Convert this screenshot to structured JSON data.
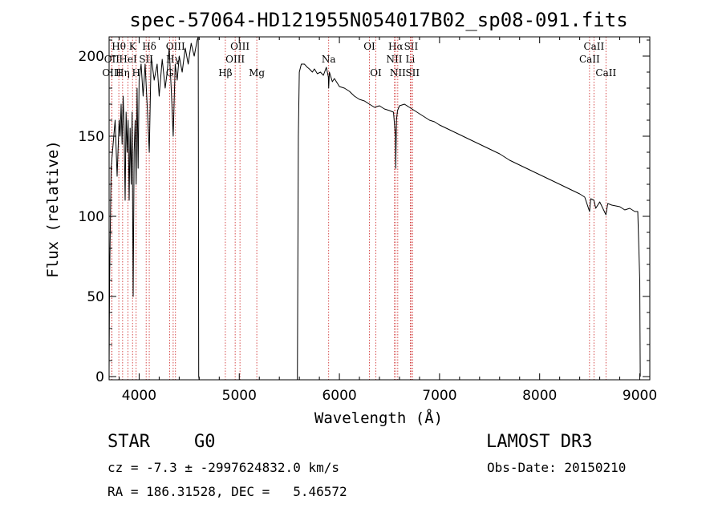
{
  "chart_data": {
    "type": "line",
    "title": "spec-57064-HD121955N054017B02_sp08-091.fits",
    "xlabel": "Wavelength (Å)",
    "ylabel": "Flux (relative)",
    "xlim": [
      3700,
      9100
    ],
    "ylim": [
      -2,
      212
    ],
    "xticks": [
      4000,
      5000,
      6000,
      7000,
      8000,
      9000
    ],
    "yticks": [
      0,
      50,
      100,
      150,
      200
    ],
    "series": [
      {
        "name": "flux",
        "x": [
          3700,
          3705,
          3720,
          3740,
          3760,
          3780,
          3800,
          3810,
          3820,
          3830,
          3840,
          3850,
          3860,
          3870,
          3880,
          3890,
          3900,
          3910,
          3920,
          3930,
          3940,
          3950,
          3960,
          3970,
          3980,
          3990,
          4000,
          4020,
          4040,
          4060,
          4080,
          4101,
          4120,
          4150,
          4180,
          4200,
          4230,
          4260,
          4280,
          4300,
          4320,
          4340,
          4360,
          4380,
          4400,
          4430,
          4460,
          4490,
          4520,
          4550,
          4580,
          4590,
          4595,
          4600,
          4610,
          5580,
          5590,
          5600,
          5620,
          5650,
          5680,
          5700,
          5730,
          5750,
          5780,
          5810,
          5840,
          5870,
          5890,
          5893,
          5900,
          5930,
          5950,
          5980,
          6000,
          6050,
          6100,
          6150,
          6200,
          6250,
          6300,
          6350,
          6400,
          6450,
          6500,
          6540,
          6560,
          6563,
          6570,
          6580,
          6600,
          6650,
          6700,
          6750,
          6800,
          6850,
          6900,
          6950,
          7000,
          7100,
          7200,
          7300,
          7400,
          7500,
          7600,
          7700,
          7800,
          7900,
          8000,
          8100,
          8200,
          8300,
          8400,
          8450,
          8498,
          8510,
          8542,
          8560,
          8600,
          8662,
          8680,
          8720,
          8800,
          8850,
          8900,
          8950,
          8980,
          9000,
          9005
        ],
        "y": [
          5,
          60,
          130,
          145,
          160,
          125,
          160,
          150,
          170,
          145,
          175,
          155,
          110,
          165,
          140,
          160,
          110,
          155,
          120,
          165,
          50,
          140,
          160,
          120,
          180,
          130,
          185,
          195,
          175,
          195,
          170,
          140,
          200,
          185,
          195,
          175,
          198,
          180,
          190,
          205,
          180,
          150,
          195,
          185,
          200,
          190,
          205,
          195,
          208,
          200,
          210,
          212,
          0,
          -2,
          -2,
          -2,
          150,
          190,
          195,
          195,
          193,
          192,
          190,
          192,
          189,
          190,
          188,
          193,
          187,
          180,
          190,
          184,
          186,
          183,
          181,
          180,
          178,
          175,
          173,
          172,
          170,
          168,
          169,
          167,
          166,
          165,
          150,
          130,
          160,
          166,
          169,
          170,
          168,
          166,
          164,
          162,
          160,
          159,
          157,
          154,
          151,
          148,
          145,
          142,
          139,
          135,
          132,
          129,
          126,
          123,
          120,
          117,
          114,
          112,
          103,
          111,
          110,
          105,
          109,
          101,
          108,
          107,
          106,
          104,
          105,
          103,
          103,
          60,
          0
        ],
        "color": "#000000"
      }
    ],
    "spectral_lines": [
      {
        "label": "Hθ",
        "x": 3797,
        "row": 1
      },
      {
        "label": "OII",
        "x": 3727,
        "row": 2
      },
      {
        "label": "OIII",
        "x": 3727,
        "row": 3
      },
      {
        "label": "K",
        "x": 3934,
        "row": 1
      },
      {
        "label": "HeI",
        "x": 3889,
        "row": 2
      },
      {
        "label": "Hη",
        "x": 3835,
        "row": 3
      },
      {
        "label": "Hδ",
        "x": 4101,
        "row": 1
      },
      {
        "label": "SII",
        "x": 4070,
        "row": 2
      },
      {
        "label": "H",
        "x": 3970,
        "row": 3
      },
      {
        "label": "OIII",
        "x": 4363,
        "row": 1
      },
      {
        "label": "Hγ",
        "x": 4340,
        "row": 2
      },
      {
        "label": "G",
        "x": 4305,
        "row": 3
      },
      {
        "label": "OIII",
        "x": 5007,
        "row": 1
      },
      {
        "label": "OIII",
        "x": 4959,
        "row": 2
      },
      {
        "label": "Hβ",
        "x": 4861,
        "row": 3
      },
      {
        "label": "Mg",
        "x": 5175,
        "row": 3
      },
      {
        "label": "Na",
        "x": 5893,
        "row": 2
      },
      {
        "label": "OI",
        "x": 6300,
        "row": 1
      },
      {
        "label": "OI",
        "x": 6364,
        "row": 3
      },
      {
        "label": "Hα",
        "x": 6563,
        "row": 1
      },
      {
        "label": "NII",
        "x": 6548,
        "row": 2
      },
      {
        "label": "NII",
        "x": 6583,
        "row": 3
      },
      {
        "label": "SII",
        "x": 6716,
        "row": 1
      },
      {
        "label": "Li",
        "x": 6708,
        "row": 2
      },
      {
        "label": "SII",
        "x": 6731,
        "row": 3
      },
      {
        "label": "CaII",
        "x": 8542,
        "row": 1
      },
      {
        "label": "CaII",
        "x": 8498,
        "row": 2
      },
      {
        "label": "CaII",
        "x": 8662,
        "row": 3
      }
    ],
    "colors": {
      "spectrum": "#000000",
      "lines": "#cc2222",
      "axes": "#000000"
    }
  },
  "info": {
    "object_class": "STAR",
    "subclass": "G0",
    "survey": "LAMOST DR3",
    "cz_line": "cz = -7.3 ± -2997624832.0 km/s",
    "obs_date": "Obs-Date: 20150210",
    "coords": "RA = 186.31528, DEC =   5.46572"
  }
}
